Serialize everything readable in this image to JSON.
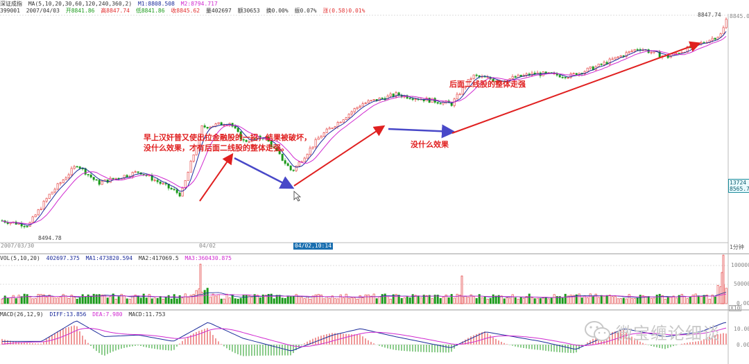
{
  "header": {
    "line1": {
      "name": "深证成指",
      "ma_spec": "MA(5,10,20,30,60,120,240,360,2)",
      "m1": "M1:8808.508",
      "m2": "M2:8794.717"
    },
    "line2": {
      "code": "399001",
      "date": "2007/04/03",
      "open": "开8841.86",
      "high": "高8847.74",
      "low": "低8841.86",
      "close": "收8845.62",
      "volume": "量402697",
      "amount": "额30653",
      "turnover": "换0.00%",
      "amplitude": "振0.07%",
      "change": "涨(0.58)0.01%"
    }
  },
  "price_panel": {
    "high_label": "8847.74",
    "axis_top": "8845.0",
    "low_label": "8494.78",
    "price_box": [
      "13724",
      "8565.70"
    ],
    "date_left": "2007/03/30",
    "date_mid": "04/02",
    "date_cursor": "04/02,10:14",
    "period": "1分钟"
  },
  "volume_panel": {
    "label": "VOL(5,10,20)",
    "value": "402697.375",
    "ma1": "MA1:473820.594",
    "ma2": "MA2:417069.5",
    "ma3": "MA3:360430.875",
    "axis": [
      "100000",
      "50000",
      "0.00"
    ],
    "unit": "X10"
  },
  "macd_panel": {
    "label": "MACD(26,12,9)",
    "diff": "DIFF:13.856",
    "dea": "DEA:7.980",
    "macd": "MACD:11.753",
    "axis": [
      "10.00",
      "0.00"
    ]
  },
  "annotations": {
    "morning": "早上汉奸普又使出拉金融股的一招，结果被破坏，",
    "morning_line2": "没什么效果，才有后面二线股的整体走强。",
    "no_effect": "没什么效果",
    "second_line": "后面二线股的整体走强"
  },
  "watermark": {
    "text": "微宝缠论细谈",
    "icon": "wechat-icon"
  },
  "colors": {
    "up": "#e23030",
    "down": "#1a9a1a",
    "ma1": "#1a2a9a",
    "ma2": "#d028d0",
    "arrow_red": "#e02020",
    "arrow_blue": "#4848c8"
  },
  "chart_data": {
    "type": "candlestick",
    "x_unit": "minute",
    "x": [
      "2007/03/30",
      "04/02",
      "04/02,10:14"
    ],
    "close_path": [
      [
        0,
        8520
      ],
      [
        40,
        8510
      ],
      [
        70,
        8575
      ],
      [
        110,
        8640
      ],
      [
        140,
        8600
      ],
      [
        200,
        8625
      ],
      [
        260,
        8575
      ],
      [
        290,
        8720
      ],
      [
        330,
        8730
      ],
      [
        350,
        8690
      ],
      [
        380,
        8700
      ],
      [
        420,
        8625
      ],
      [
        460,
        8700
      ],
      [
        520,
        8770
      ],
      [
        570,
        8790
      ],
      [
        650,
        8770
      ],
      [
        680,
        8830
      ],
      [
        720,
        8820
      ],
      [
        770,
        8835
      ],
      [
        820,
        8830
      ],
      [
        860,
        8850
      ],
      [
        920,
        8890
      ],
      [
        960,
        8870
      ],
      [
        1010,
        8900
      ],
      [
        1040,
        8920
      ],
      [
        1045,
        8950
      ]
    ],
    "macd_diff": [
      [
        0,
        2
      ],
      [
        60,
        2
      ],
      [
        110,
        15
      ],
      [
        150,
        5
      ],
      [
        200,
        6
      ],
      [
        250,
        2
      ],
      [
        300,
        14
      ],
      [
        350,
        4
      ],
      [
        420,
        -4
      ],
      [
        480,
        6
      ],
      [
        520,
        10
      ],
      [
        570,
        5
      ],
      [
        650,
        -2
      ],
      [
        700,
        8
      ],
      [
        780,
        2
      ],
      [
        830,
        -3
      ],
      [
        900,
        10
      ],
      [
        960,
        5
      ],
      [
        1010,
        8
      ],
      [
        1045,
        13.856
      ]
    ]
  }
}
